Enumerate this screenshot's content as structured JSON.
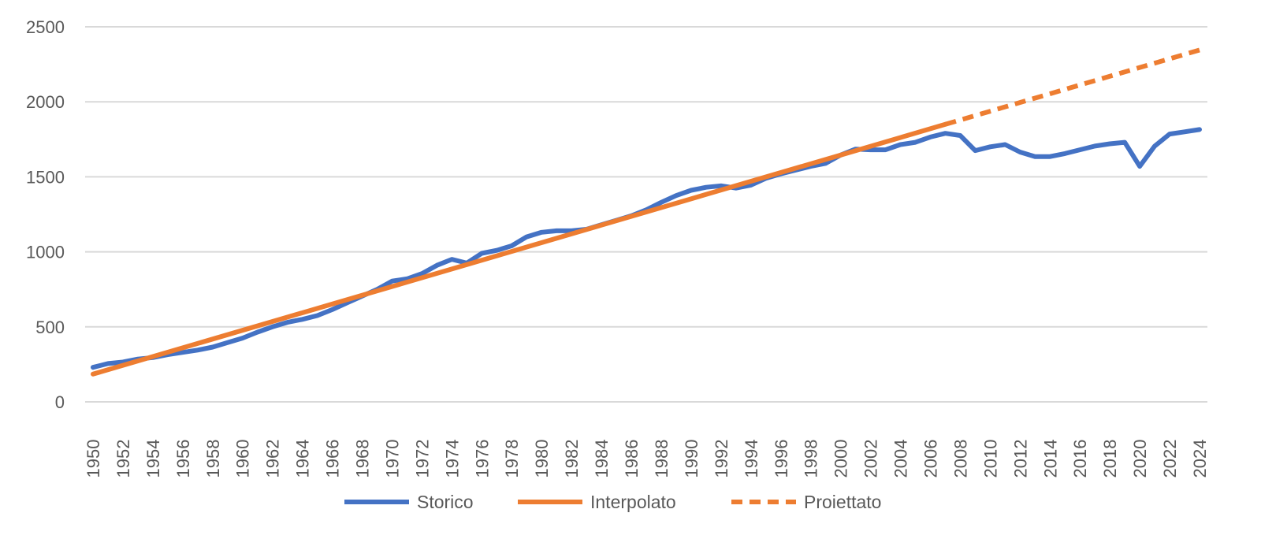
{
  "chart_data": {
    "type": "line",
    "title": "",
    "xlabel": "",
    "ylabel": "",
    "ylim": [
      0,
      2500
    ],
    "yticks": [
      "0",
      "500",
      "1000",
      "1500",
      "2000",
      "2500"
    ],
    "xlim": [
      1950,
      2024
    ],
    "grid": true,
    "legend_position": "bottom",
    "colors": {
      "storico": "#4472C4",
      "interpolato": "#ED7D31",
      "proiettato": "#ED7D31",
      "grid": "#D9D9D9",
      "text": "#595959"
    },
    "series": [
      {
        "name": "Storico",
        "style": "solid",
        "x": [
          1950,
          1951,
          1952,
          1953,
          1954,
          1955,
          1956,
          1957,
          1958,
          1959,
          1960,
          1961,
          1962,
          1963,
          1964,
          1965,
          1966,
          1967,
          1968,
          1969,
          1970,
          1971,
          1972,
          1973,
          1974,
          1975,
          1976,
          1977,
          1978,
          1979,
          1980,
          1981,
          1982,
          1983,
          1984,
          1985,
          1986,
          1987,
          1988,
          1989,
          1990,
          1991,
          1992,
          1993,
          1994,
          1995,
          1996,
          1997,
          1998,
          1999,
          2000,
          2001,
          2002,
          2003,
          2004,
          2005,
          2006,
          2007,
          2008,
          2009,
          2010,
          2011,
          2012,
          2013,
          2014,
          2015,
          2016,
          2017,
          2018,
          2019,
          2020,
          2021,
          2022,
          2023,
          2024
        ],
        "values": [
          230,
          255,
          265,
          285,
          295,
          315,
          330,
          345,
          365,
          395,
          425,
          465,
          500,
          530,
          550,
          575,
          615,
          660,
          705,
          750,
          805,
          820,
          855,
          910,
          950,
          925,
          990,
          1010,
          1040,
          1100,
          1130,
          1140,
          1140,
          1150,
          1180,
          1210,
          1240,
          1280,
          1330,
          1375,
          1410,
          1430,
          1440,
          1425,
          1445,
          1490,
          1520,
          1545,
          1570,
          1590,
          1645,
          1685,
          1680,
          1680,
          1715,
          1730,
          1765,
          1790,
          1775,
          1675,
          1700,
          1715,
          1665,
          1635,
          1635,
          1655,
          1680,
          1705,
          1720,
          1730,
          1570,
          1705,
          1785,
          1800,
          1815
        ]
      },
      {
        "name": "Interpolato",
        "style": "solid",
        "x": [
          1950,
          2007
        ],
        "values": [
          185,
          1850
        ]
      },
      {
        "name": "Proiettato",
        "style": "dashed",
        "x": [
          2007,
          2024
        ],
        "values": [
          1850,
          2345
        ]
      }
    ]
  }
}
